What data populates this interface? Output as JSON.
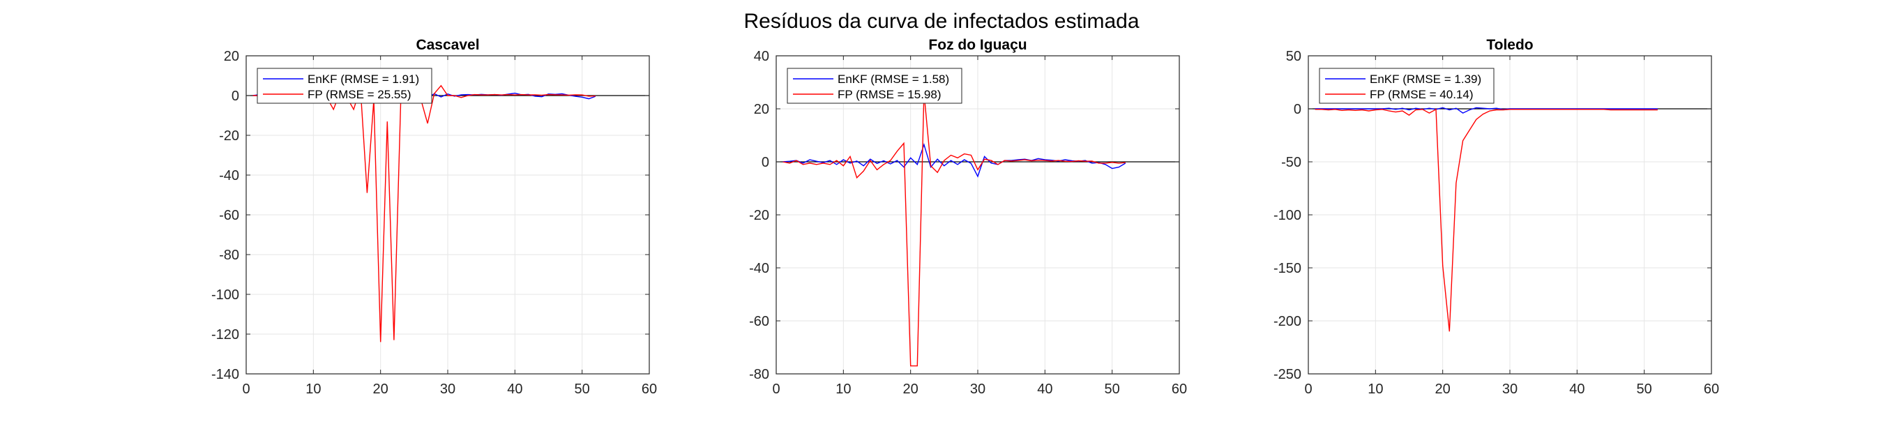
{
  "figure_title": "Resíduos da curva de infectados estimada",
  "colors": {
    "enkf": "#0000ff",
    "fp": "#ff0000",
    "zero_line": "#000000",
    "grid": "#e6e6e6",
    "axis": "#262626"
  },
  "chart_data": [
    {
      "type": "line",
      "title": "Cascavel",
      "xlabel": "",
      "ylabel": "",
      "xlim": [
        0,
        60
      ],
      "ylim": [
        -140,
        20
      ],
      "xticks": [
        0,
        10,
        20,
        30,
        40,
        50,
        60
      ],
      "yticks": [
        -140,
        -120,
        -100,
        -80,
        -60,
        -40,
        -20,
        0,
        20
      ],
      "grid": true,
      "legend_position": "top-left",
      "legend": [
        "EnKF (RMSE = 1.91)",
        "FP (RMSE = 25.55)"
      ],
      "series": [
        {
          "name": "EnKF (RMSE = 1.91)",
          "color": "#0000ff",
          "x": [
            1,
            2,
            3,
            4,
            5,
            6,
            7,
            8,
            9,
            10,
            11,
            12,
            13,
            14,
            15,
            16,
            17,
            18,
            19,
            20,
            21,
            22,
            23,
            24,
            25,
            26,
            27,
            28,
            29,
            30,
            31,
            32,
            33,
            34,
            35,
            36,
            37,
            38,
            39,
            40,
            41,
            42,
            43,
            44,
            45,
            46,
            47,
            48,
            49,
            50,
            51,
            52
          ],
          "y": [
            0,
            0.5,
            -0.5,
            0.3,
            0.2,
            -0.4,
            0.6,
            0.1,
            -0.3,
            0.5,
            -0.8,
            0.4,
            -1.2,
            0.9,
            -0.6,
            1.1,
            -1.4,
            0.8,
            -0.5,
            1.2,
            -0.9,
            0.7,
            -0.4,
            1.5,
            -0.8,
            0.6,
            -1.0,
            0.9,
            -0.7,
            0.8,
            -0.3,
            0.4,
            0.5,
            0.3,
            0.6,
            0.4,
            0.5,
            0.2,
            0.7,
            1.2,
            0.4,
            0.6,
            -0.3,
            -0.6,
            0.8,
            0.6,
            0.9,
            0.2,
            -0.4,
            -0.8,
            -1.6,
            -0.4
          ]
        },
        {
          "name": "FP (RMSE = 25.55)",
          "color": "#ff0000",
          "x": [
            1,
            2,
            3,
            4,
            5,
            6,
            7,
            8,
            9,
            10,
            11,
            12,
            13,
            14,
            15,
            16,
            17,
            18,
            19,
            20,
            21,
            22,
            23,
            24,
            25,
            26,
            27,
            28,
            29,
            30,
            31,
            32,
            33,
            34,
            35,
            36,
            37,
            38,
            39,
            40,
            41,
            42,
            43,
            44,
            45,
            46,
            47,
            48,
            49,
            50,
            51,
            52
          ],
          "y": [
            0,
            0,
            0,
            0,
            0,
            0,
            0,
            0,
            0,
            0,
            -1,
            -1,
            -7,
            2,
            -1,
            -7,
            4,
            -49,
            -2,
            -124,
            -13,
            -123,
            -3,
            3,
            -2,
            -2,
            -14,
            1,
            5,
            0,
            0,
            -1,
            0,
            0.5,
            0.3,
            0.3,
            0.5,
            0.3,
            0.5,
            0.3,
            0.5,
            0.3,
            0.4,
            0.2,
            0.5,
            0.4,
            0.3,
            0.2,
            0.4,
            0.3,
            -0.3,
            -0.2
          ]
        }
      ]
    },
    {
      "type": "line",
      "title": "Foz do Iguaçu",
      "xlabel": "",
      "ylabel": "",
      "xlim": [
        0,
        60
      ],
      "ylim": [
        -80,
        40
      ],
      "xticks": [
        0,
        10,
        20,
        30,
        40,
        50,
        60
      ],
      "yticks": [
        -80,
        -60,
        -40,
        -20,
        0,
        20,
        40
      ],
      "grid": true,
      "legend_position": "top-left",
      "legend": [
        "EnKF (RMSE = 1.58)",
        "FP (RMSE = 15.98)"
      ],
      "series": [
        {
          "name": "EnKF (RMSE = 1.58)",
          "color": "#0000ff",
          "x": [
            1,
            2,
            3,
            4,
            5,
            6,
            7,
            8,
            9,
            10,
            11,
            12,
            13,
            14,
            15,
            16,
            17,
            18,
            19,
            20,
            21,
            22,
            23,
            24,
            25,
            26,
            27,
            28,
            29,
            30,
            31,
            32,
            33,
            34,
            35,
            36,
            37,
            38,
            39,
            40,
            41,
            42,
            43,
            44,
            45,
            46,
            47,
            48,
            49,
            50,
            51,
            52
          ],
          "y": [
            0,
            0.2,
            0.5,
            -0.5,
            0.8,
            0.2,
            -0.3,
            0.5,
            -1.0,
            0.8,
            -0.5,
            0.3,
            -1.5,
            1.0,
            -0.6,
            0.4,
            -0.8,
            0.5,
            -2.0,
            1.5,
            -1.0,
            6.5,
            -2.0,
            1.0,
            -1.5,
            0.5,
            -1.0,
            0.8,
            -0.6,
            -5.5,
            2.0,
            -0.5,
            -1.0,
            0.5,
            0.5,
            0.8,
            1.0,
            0.5,
            1.2,
            0.8,
            0.6,
            0.3,
            0.8,
            0.4,
            0.2,
            0.5,
            -0.5,
            -0.3,
            -1.0,
            -2.5,
            -2.0,
            -0.5
          ]
        },
        {
          "name": "FP (RMSE = 15.98)",
          "color": "#ff0000",
          "x": [
            1,
            2,
            3,
            4,
            5,
            6,
            7,
            8,
            9,
            10,
            11,
            12,
            13,
            14,
            15,
            16,
            17,
            18,
            19,
            20,
            21,
            22,
            23,
            24,
            25,
            26,
            27,
            28,
            29,
            30,
            31,
            32,
            33,
            34,
            35,
            36,
            37,
            38,
            39,
            40,
            41,
            42,
            43,
            44,
            45,
            46,
            47,
            48,
            49,
            50,
            51,
            52
          ],
          "y": [
            0,
            -0.5,
            0.5,
            -1.0,
            -0.5,
            -1.0,
            -0.5,
            -1.0,
            0.5,
            -1.5,
            2.0,
            -6.0,
            -3.5,
            0.5,
            -3.0,
            -1.0,
            0.5,
            4.0,
            7.0,
            -77.0,
            -77.0,
            26.0,
            -1.5,
            -4.0,
            0.5,
            2.5,
            1.5,
            3.0,
            2.5,
            -3.0,
            1.0,
            0.5,
            -1.0,
            0.5,
            0.3,
            0.5,
            0.8,
            0.4,
            0.6,
            0.5,
            0.3,
            0.5,
            0.2,
            0.1,
            0.4,
            0.2,
            0.3,
            -0.5,
            -0.5,
            -0.2,
            -0.5,
            -0.3
          ]
        }
      ]
    },
    {
      "type": "line",
      "title": "Toledo",
      "xlabel": "",
      "ylabel": "",
      "xlim": [
        0,
        60
      ],
      "ylim": [
        -250,
        50
      ],
      "xticks": [
        0,
        10,
        20,
        30,
        40,
        50,
        60
      ],
      "yticks": [
        -250,
        -200,
        -150,
        -100,
        -50,
        0,
        50
      ],
      "grid": true,
      "legend_position": "top-left",
      "legend": [
        "EnKF (RMSE = 1.39)",
        "FP (RMSE = 40.14)"
      ],
      "series": [
        {
          "name": "EnKF (RMSE = 1.39)",
          "color": "#0000ff",
          "x": [
            1,
            2,
            3,
            4,
            5,
            6,
            7,
            8,
            9,
            10,
            11,
            12,
            13,
            14,
            15,
            16,
            17,
            18,
            19,
            20,
            21,
            22,
            23,
            24,
            25,
            26,
            27,
            28,
            29,
            30,
            31,
            32,
            33,
            34,
            35,
            36,
            37,
            38,
            39,
            40,
            41,
            42,
            43,
            44,
            45,
            46,
            47,
            48,
            49,
            50,
            51,
            52
          ],
          "y": [
            0,
            0,
            0,
            0,
            0,
            0,
            0,
            0,
            0,
            0,
            0,
            0.5,
            -0.5,
            0.5,
            -1,
            0.5,
            -0.5,
            0.5,
            -0.5,
            1,
            -1,
            0.5,
            -4,
            -1,
            1,
            0.5,
            0,
            0.5,
            -0.5,
            0,
            0,
            0,
            0,
            0,
            0,
            0,
            0,
            0,
            0,
            0,
            0,
            0,
            0,
            0,
            0,
            0,
            0,
            0,
            0,
            0,
            0,
            0
          ]
        },
        {
          "name": "FP (RMSE = 40.14)",
          "color": "#ff0000",
          "x": [
            1,
            2,
            3,
            4,
            5,
            6,
            7,
            8,
            9,
            10,
            11,
            12,
            13,
            14,
            15,
            16,
            17,
            18,
            19,
            20,
            21,
            22,
            23,
            24,
            25,
            26,
            27,
            28,
            29,
            30,
            31,
            32,
            33,
            34,
            35,
            36,
            37,
            38,
            39,
            40,
            41,
            42,
            43,
            44,
            45,
            46,
            47,
            48,
            49,
            50,
            51,
            52
          ],
          "y": [
            -0.5,
            -0.5,
            -1,
            -0.5,
            -1.5,
            -1,
            -1.5,
            -1,
            -2,
            -1,
            -0.5,
            -2,
            -3,
            -2,
            -6,
            -1,
            -0.5,
            -4,
            -0.5,
            -148,
            -210,
            -70,
            -30,
            -20,
            -10,
            -5,
            -2,
            -1,
            -1,
            -0.5,
            -0.5,
            -0.5,
            -0.5,
            -0.5,
            -0.5,
            -0.5,
            -0.5,
            -0.5,
            -0.5,
            -0.5,
            -0.5,
            -0.5,
            -0.5,
            -0.5,
            -1,
            -1,
            -1,
            -1,
            -1,
            -1,
            -1,
            -1
          ]
        }
      ]
    }
  ]
}
